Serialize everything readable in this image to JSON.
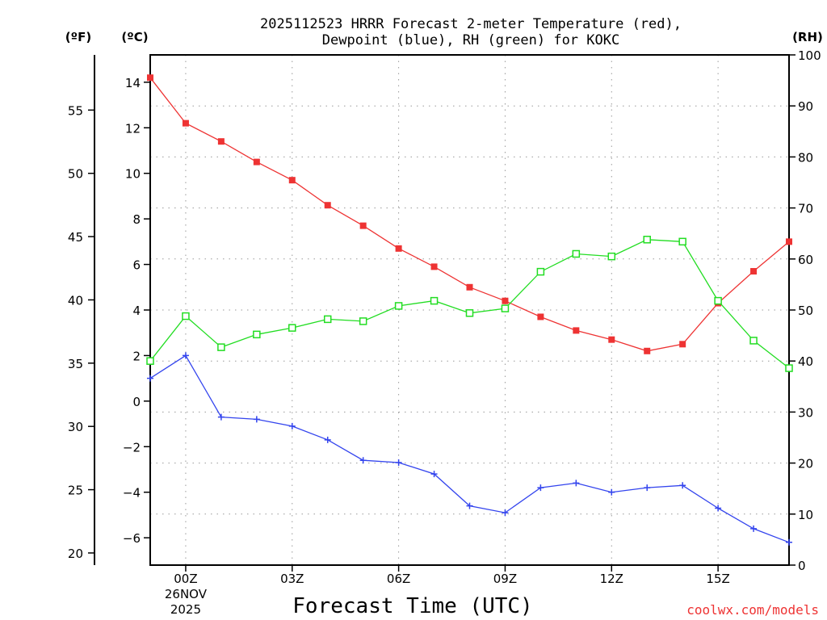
{
  "chart_data": {
    "type": "line",
    "title_line1": "2025112523 HRRR Forecast 2-meter Temperature (red),",
    "title_line2": "Dewpoint (blue), RH (green) for KOKC",
    "xlabel": "Forecast Time (UTC)",
    "credit": "coolwx.com/models",
    "unit_f": "(ºF)",
    "unit_c": "(ºC)",
    "unit_rh": "(RH)",
    "x_hours": [
      -1,
      0,
      1,
      2,
      3,
      4,
      5,
      6,
      7,
      8,
      9,
      10,
      11,
      12,
      13,
      14,
      15,
      16,
      17
    ],
    "xlim": [
      -1,
      17
    ],
    "x_ticks": [
      {
        "hour": 0,
        "label": "00Z",
        "sub1": "26NOV",
        "sub2": "2025"
      },
      {
        "hour": 3,
        "label": "03Z",
        "sub1": "",
        "sub2": ""
      },
      {
        "hour": 6,
        "label": "06Z",
        "sub1": "",
        "sub2": ""
      },
      {
        "hour": 9,
        "label": "09Z",
        "sub1": "",
        "sub2": ""
      },
      {
        "hour": 12,
        "label": "12Z",
        "sub1": "",
        "sub2": ""
      },
      {
        "hour": 15,
        "label": "15Z",
        "sub1": "",
        "sub2": ""
      }
    ],
    "ylim_c": [
      -7.2,
      15.2
    ],
    "yticks_c": [
      "14",
      "12",
      "10",
      "8",
      "6",
      "4",
      "2",
      "0",
      "−2",
      "−4",
      "−6"
    ],
    "yticks_c_values": [
      14,
      12,
      10,
      8,
      6,
      4,
      2,
      0,
      -2,
      -4,
      -6
    ],
    "yticks_f": [
      "55",
      "50",
      "45",
      "40",
      "35",
      "30",
      "25",
      "20"
    ],
    "yticks_f_values": [
      55,
      50,
      45,
      40,
      35,
      30,
      25,
      20
    ],
    "ylim_rh": [
      0,
      100
    ],
    "yticks_rh": [
      "100",
      "90",
      "80",
      "70",
      "60",
      "50",
      "40",
      "30",
      "20",
      "10",
      "0"
    ],
    "yticks_rh_values": [
      100,
      90,
      80,
      70,
      60,
      50,
      40,
      30,
      20,
      10,
      0
    ],
    "grid": true,
    "series": [
      {
        "name": "2-meter Temperature",
        "axis": "C",
        "color": "#ee3333",
        "marker": "filled-square",
        "values": [
          14.2,
          12.2,
          11.4,
          10.5,
          9.7,
          8.6,
          7.7,
          6.7,
          5.9,
          5.0,
          4.4,
          3.7,
          3.1,
          2.7,
          2.2,
          2.5,
          4.3,
          5.7,
          7.0
        ]
      },
      {
        "name": "Dewpoint",
        "axis": "C",
        "color": "#3344ee",
        "marker": "plus",
        "values": [
          1.0,
          2.0,
          -0.7,
          -0.8,
          -1.1,
          -1.7,
          -2.6,
          -2.7,
          -3.2,
          -4.6,
          -4.9,
          -3.8,
          -3.6,
          -4.0,
          -3.8,
          -3.7,
          -4.7,
          -5.6,
          -6.2
        ]
      },
      {
        "name": "RH",
        "axis": "RH",
        "color": "#22dd22",
        "marker": "open-square",
        "values": [
          40.0,
          48.8,
          42.7,
          45.2,
          46.5,
          48.2,
          47.8,
          50.8,
          51.8,
          49.4,
          50.3,
          57.5,
          61.0,
          60.5,
          63.8,
          63.4,
          51.8,
          44.0,
          38.6
        ]
      }
    ]
  }
}
